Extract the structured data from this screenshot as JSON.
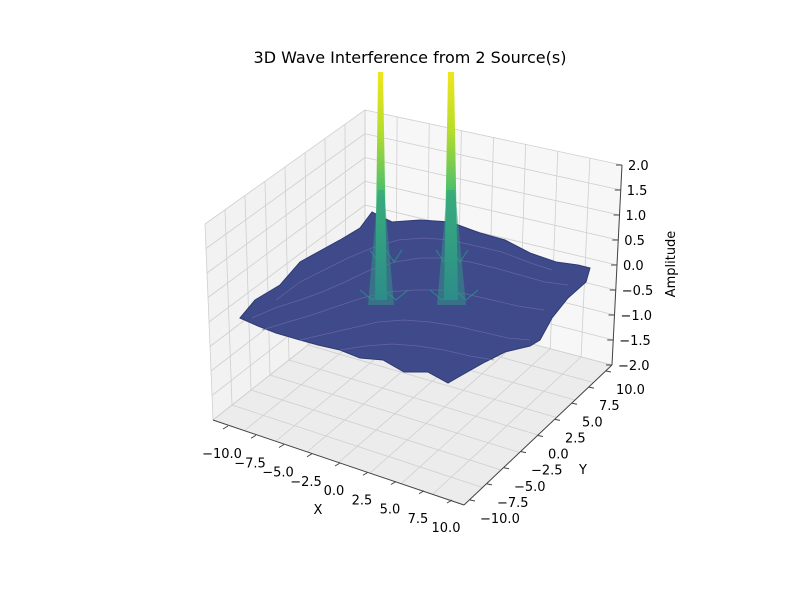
{
  "chart_data": {
    "type": "surface3d",
    "title": "3D Wave Interference from 2 Source(s)",
    "xlabel": "X",
    "ylabel": "Y",
    "zlabel": "Amplitude",
    "xlim": [
      -10,
      10
    ],
    "ylim": [
      -10,
      10
    ],
    "zlim": [
      -2,
      2
    ],
    "x_ticks": [
      "−10.0",
      "−7.5",
      "−5.0",
      "−2.5",
      "0.0",
      "2.5",
      "5.0",
      "7.5",
      "10.0"
    ],
    "y_ticks": [
      "−10.0",
      "−7.5",
      "−5.0",
      "−2.5",
      "0.0",
      "2.5",
      "5.0",
      "7.5",
      "10.0"
    ],
    "z_ticks": [
      "−2.0",
      "−1.5",
      "−1.0",
      "−0.5",
      "0.0",
      "0.5",
      "1.0",
      "1.5",
      "2.0"
    ],
    "colormap": "viridis",
    "grid": true,
    "sources": [
      {
        "x": -2.5,
        "y": 5.0
      },
      {
        "x": 2.5,
        "y": 5.0
      }
    ]
  },
  "colors": {
    "surface_low": "#3b4a8a",
    "surface_mid": "#2a7f8e",
    "surface_high": "#f1e51d",
    "pane_left": "#f2f2f2",
    "pane_back": "#f7f7f7",
    "pane_floor": "#ececec",
    "grid": "#cfcfcf"
  }
}
